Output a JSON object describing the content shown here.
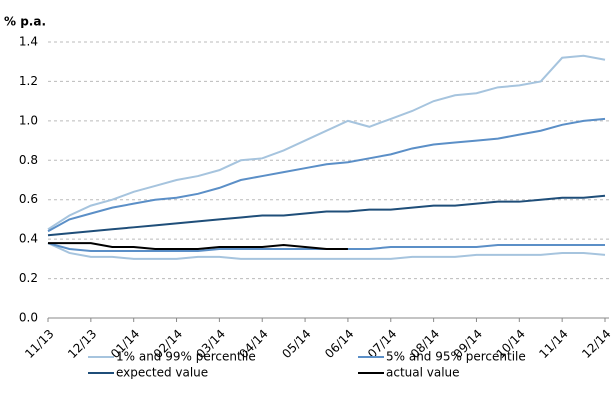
{
  "chart_data": {
    "type": "line",
    "y_label": "% p.a.",
    "categories": [
      "11/13",
      null,
      "12/13",
      null,
      "01/14",
      null,
      "02/14",
      null,
      "03/14",
      null,
      "04/14",
      null,
      "05/14",
      null,
      "06/14",
      null,
      "07/14",
      null,
      "08/14",
      null,
      "09/14",
      null,
      "10/14",
      null,
      "11/14",
      null,
      "12/14"
    ],
    "series": [
      {
        "name": "1% and 99% percentile",
        "color": "#a6c4de",
        "values": [
          0.45,
          0.52,
          0.57,
          0.6,
          0.64,
          0.67,
          0.7,
          0.72,
          0.75,
          0.8,
          0.81,
          0.85,
          0.9,
          0.95,
          1.0,
          0.97,
          1.01,
          1.05,
          1.1,
          1.13,
          1.14,
          1.17,
          1.18,
          1.2,
          1.32,
          1.33,
          1.31
        ],
        "lower_values": [
          0.38,
          0.33,
          0.31,
          0.31,
          0.3,
          0.3,
          0.3,
          0.31,
          0.31,
          0.3,
          0.3,
          0.3,
          0.3,
          0.3,
          0.3,
          0.3,
          0.3,
          0.31,
          0.31,
          0.31,
          0.32,
          0.32,
          0.32,
          0.32,
          0.33,
          0.33,
          0.32
        ]
      },
      {
        "name": "5% and 95% percentile",
        "color": "#5b8fc7",
        "values": [
          0.44,
          0.5,
          0.53,
          0.56,
          0.58,
          0.6,
          0.61,
          0.63,
          0.66,
          0.7,
          0.72,
          0.74,
          0.76,
          0.78,
          0.79,
          0.81,
          0.83,
          0.86,
          0.88,
          0.89,
          0.9,
          0.91,
          0.93,
          0.95,
          0.98,
          1.0,
          1.01
        ],
        "lower_values": [
          0.38,
          0.35,
          0.34,
          0.34,
          0.34,
          0.34,
          0.34,
          0.34,
          0.35,
          0.35,
          0.35,
          0.35,
          0.35,
          0.35,
          0.35,
          0.35,
          0.36,
          0.36,
          0.36,
          0.36,
          0.36,
          0.37,
          0.37,
          0.37,
          0.37,
          0.37,
          0.37
        ]
      },
      {
        "name": "expected value",
        "color": "#1f4e79",
        "values": [
          0.42,
          0.43,
          0.44,
          0.45,
          0.46,
          0.47,
          0.48,
          0.49,
          0.5,
          0.51,
          0.52,
          0.52,
          0.53,
          0.54,
          0.54,
          0.55,
          0.55,
          0.56,
          0.57,
          0.57,
          0.58,
          0.59,
          0.59,
          0.6,
          0.61,
          0.61,
          0.62
        ]
      },
      {
        "name": "actual value",
        "color": "#000000",
        "values": [
          0.38,
          0.38,
          0.38,
          0.36,
          0.36,
          0.35,
          0.35,
          0.35,
          0.36,
          0.36,
          0.36,
          0.37,
          0.36,
          0.35,
          0.35,
          null,
          null,
          null,
          null,
          null,
          null,
          null,
          null,
          null,
          null,
          null,
          null
        ]
      }
    ],
    "ylim": [
      0,
      1.4
    ],
    "yticks": [
      {
        "value": 0,
        "label": "0.0"
      },
      {
        "value": 0.2,
        "label": "0.2"
      },
      {
        "value": 0.4,
        "label": "0.4"
      },
      {
        "value": 0.6,
        "label": "0.6"
      },
      {
        "value": 0.8,
        "label": "0.8"
      },
      {
        "value": 1,
        "label": "1.0"
      },
      {
        "value": 1.2,
        "label": "1.2"
      },
      {
        "value": 1.4,
        "label": "1.4"
      }
    ],
    "grid": true
  }
}
